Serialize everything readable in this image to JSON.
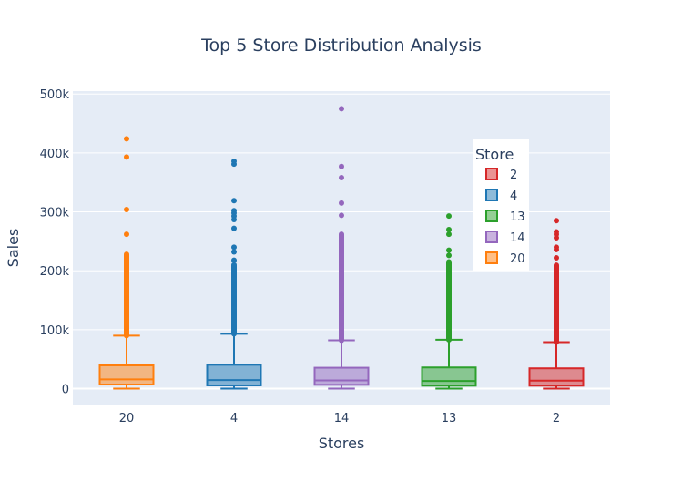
{
  "chart_data": {
    "type": "box",
    "title": "Top 5 Store Distribution Analysis",
    "xlabel": "Stores",
    "ylabel": "Sales",
    "categories": [
      "20",
      "4",
      "14",
      "13",
      "2"
    ],
    "ylim": [
      -27000,
      505000
    ],
    "yticks": [
      0,
      100000,
      200000,
      300000,
      400000,
      500000
    ],
    "ytick_labels": [
      "0",
      "100k",
      "200k",
      "300k",
      "400k",
      "500k"
    ],
    "grid": true,
    "legend": {
      "title": "Store",
      "placement": "right-middle-overlay",
      "entries": [
        "2",
        "4",
        "13",
        "14",
        "20"
      ]
    },
    "series": [
      {
        "name": "20",
        "color": "#ff7f0e",
        "min": 0,
        "q1": 7000,
        "median": 15800,
        "q3": 39500,
        "upper_fence": 90000,
        "dense_outliers": [
          90000,
          228000
        ],
        "outliers": [
          262000,
          304000,
          393000,
          424000
        ]
      },
      {
        "name": "4",
        "color": "#1f77b4",
        "min": 0,
        "q1": 5500,
        "median": 14500,
        "q3": 40500,
        "upper_fence": 93000,
        "dense_outliers": [
          93000,
          210000
        ],
        "outliers": [
          218000,
          232000,
          240000,
          272000,
          287000,
          293000,
          298000,
          302000,
          319000,
          381000,
          386000
        ]
      },
      {
        "name": "14",
        "color": "#9467bd",
        "min": 0,
        "q1": 6500,
        "median": 14000,
        "q3": 35500,
        "upper_fence": 82000,
        "dense_outliers": [
          82000,
          262000
        ],
        "outliers": [
          294000,
          315000,
          358000,
          377000,
          475000
        ]
      },
      {
        "name": "13",
        "color": "#2ca02c",
        "min": 0,
        "q1": 5000,
        "median": 13000,
        "q3": 36000,
        "upper_fence": 83000,
        "dense_outliers": [
          83000,
          215000
        ],
        "outliers": [
          226000,
          235000,
          262000,
          270000,
          293000
        ]
      },
      {
        "name": "2",
        "color": "#d62728",
        "min": 0,
        "q1": 5000,
        "median": 13500,
        "q3": 34500,
        "upper_fence": 79000,
        "dense_outliers": [
          79000,
          210000
        ],
        "outliers": [
          222000,
          236000,
          240000,
          256000,
          262000,
          266000,
          285000
        ]
      }
    ]
  }
}
